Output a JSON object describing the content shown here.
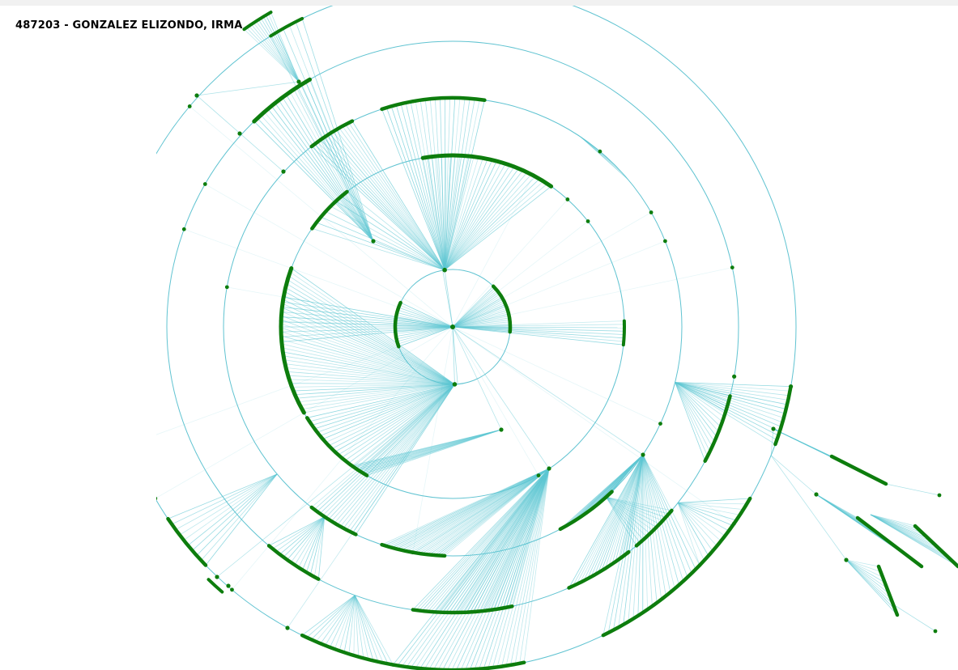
{
  "header": {
    "title": "487203 - GONZALEZ ELIZONDO, IRMA"
  },
  "colors": {
    "ring_stroke": "#4fbdcc",
    "link_stroke": "#5cc6d2",
    "node_fill": "#0d7d0d",
    "background": "#ffffff",
    "top_strip": "#f1f1f1"
  },
  "diagram": {
    "type": "radial-collaboration-network",
    "rings": 5,
    "rendered_as": "graphic"
  }
}
